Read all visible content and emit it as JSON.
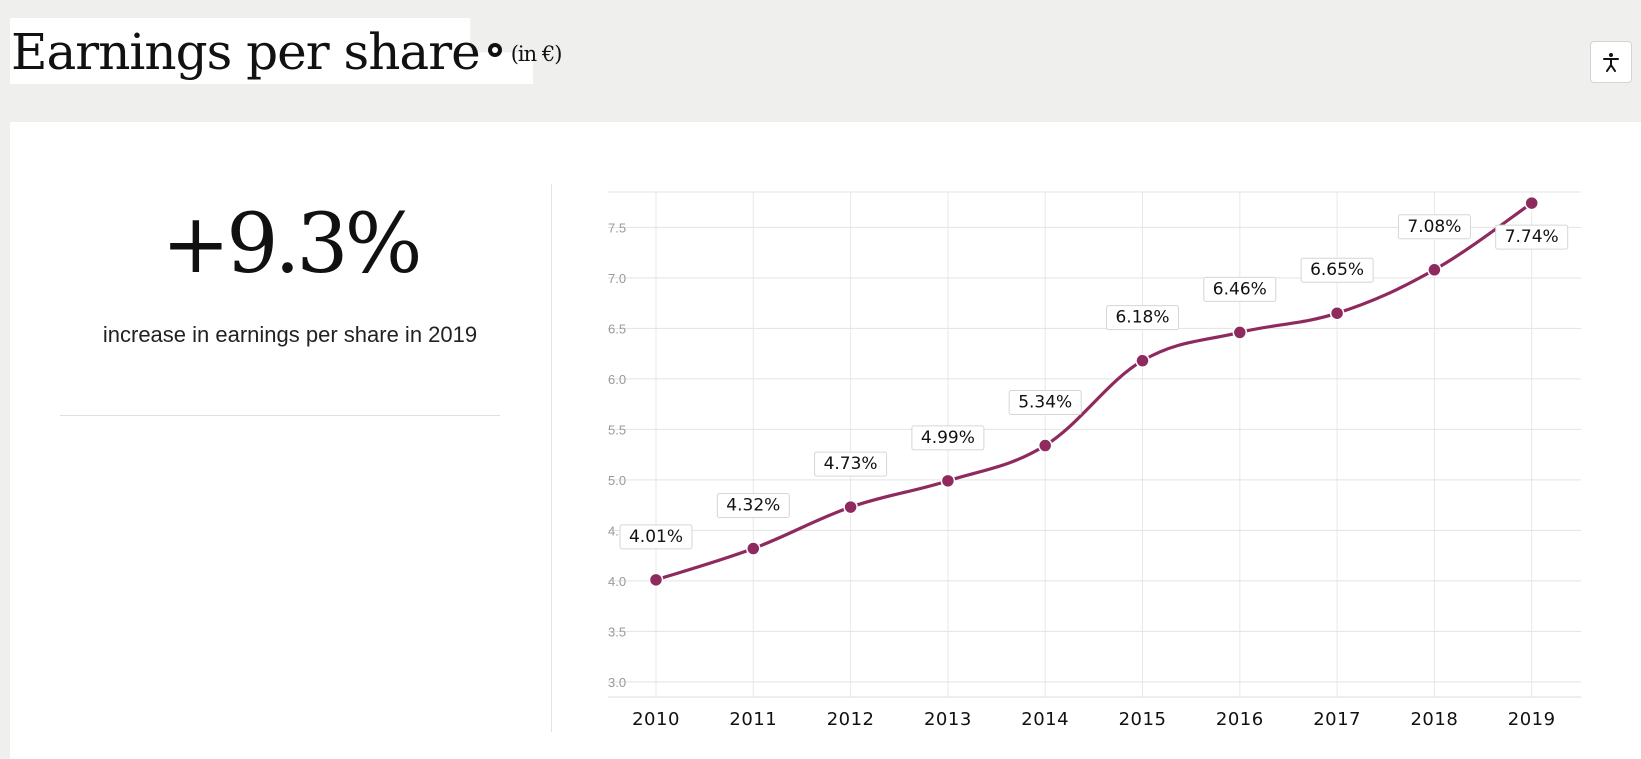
{
  "header": {
    "title": "Earnings per share",
    "unit": "(in €)"
  },
  "highlight": {
    "value": "+9.3%",
    "caption": "increase in earnings per share in 2019"
  },
  "colors": {
    "series": "#8e2a5e",
    "background": "#eff0ee"
  },
  "chart_data": {
    "type": "line",
    "x": [
      "2010",
      "2011",
      "2012",
      "2013",
      "2014",
      "2015",
      "2016",
      "2017",
      "2018",
      "2019"
    ],
    "series": [
      {
        "values": [
          4.01,
          4.32,
          4.73,
          4.99,
          5.34,
          6.18,
          6.46,
          6.65,
          7.08,
          7.74
        ],
        "data_labels": [
          "4.01%",
          "4.32%",
          "4.73%",
          "4.99%",
          "5.34%",
          "6.18%",
          "6.46%",
          "6.65%",
          "7.08%",
          "7.74%"
        ]
      }
    ],
    "yticks": [
      "3.0",
      "3.5",
      "4.0",
      "4.5",
      "5.0",
      "5.5",
      "6.0",
      "6.5",
      "7.0",
      "7.5"
    ],
    "ylim": [
      2.85,
      7.85
    ],
    "grid": true,
    "title": "",
    "xlabel": "",
    "ylabel": ""
  }
}
